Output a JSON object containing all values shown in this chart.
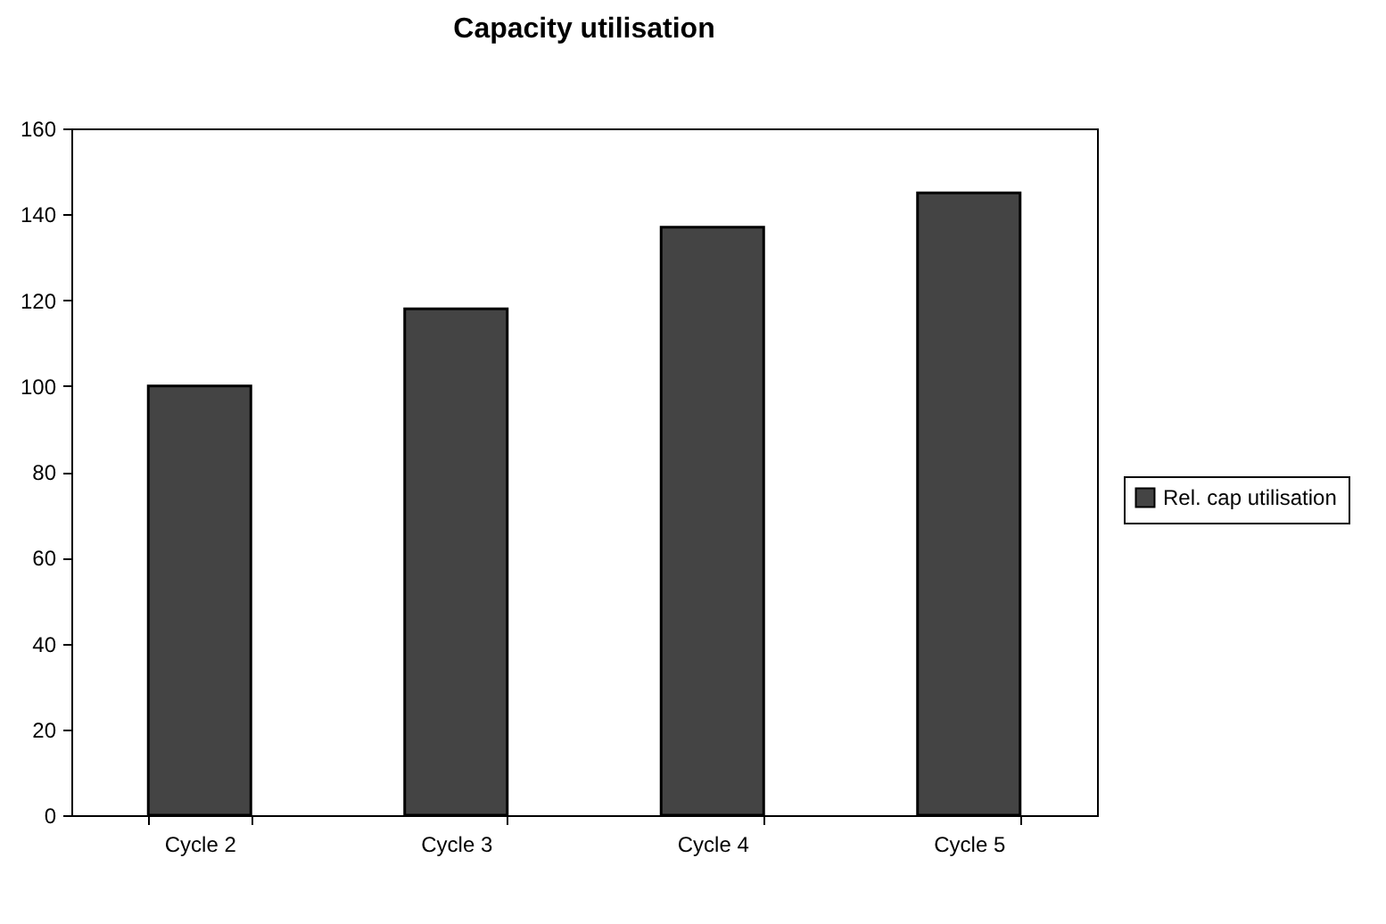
{
  "chart_data": {
    "type": "bar",
    "title": "Capacity utilisation",
    "categories": [
      "Cycle 2",
      "Cycle 3",
      "Cycle 4",
      "Cycle 5"
    ],
    "series": [
      {
        "name": "Rel. cap utilisation",
        "color": "#444444",
        "values": [
          100,
          118,
          137,
          145
        ]
      }
    ],
    "ylim": [
      0,
      160
    ],
    "yticks": [
      0,
      20,
      40,
      60,
      80,
      100,
      120,
      140,
      160
    ],
    "grid": false,
    "legend": "right"
  }
}
